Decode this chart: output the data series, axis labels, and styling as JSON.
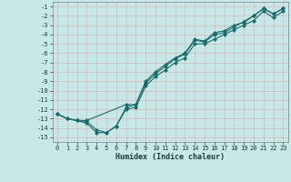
{
  "bg_color": "#c8e8e8",
  "grid_color": "#b8d8d8",
  "line_color": "#1a6b6b",
  "xlabel": "Humidex (Indice chaleur)",
  "xlim": [
    -0.5,
    23.5
  ],
  "ylim": [
    -15.5,
    -0.5
  ],
  "xticks": [
    0,
    1,
    2,
    3,
    4,
    5,
    6,
    7,
    8,
    9,
    10,
    11,
    12,
    13,
    14,
    15,
    16,
    17,
    18,
    19,
    20,
    21,
    22,
    23
  ],
  "yticks": [
    -1,
    -2,
    -3,
    -4,
    -5,
    -6,
    -7,
    -8,
    -9,
    -10,
    -11,
    -12,
    -13,
    -14,
    -15
  ],
  "series1_x": [
    0,
    1,
    2,
    3,
    4,
    5,
    6,
    7,
    8,
    9,
    10,
    11,
    12,
    13,
    14,
    15,
    16,
    17,
    18,
    19,
    20,
    21,
    22,
    23
  ],
  "series1_y": [
    -12.5,
    -13.0,
    -13.2,
    -13.5,
    -14.5,
    -14.5,
    -13.8,
    -12.0,
    -11.8,
    -9.5,
    -8.5,
    -7.8,
    -7.0,
    -6.5,
    -5.0,
    -5.0,
    -4.5,
    -4.0,
    -3.5,
    -3.0,
    -2.5,
    -1.5,
    -2.2,
    -1.5
  ],
  "series2_x": [
    0,
    1,
    2,
    3,
    4,
    5,
    6,
    7,
    8,
    9,
    10,
    11,
    12,
    13,
    14,
    15,
    16,
    17,
    18,
    19,
    20,
    21,
    22,
    23
  ],
  "series2_y": [
    -12.5,
    -13.0,
    -13.2,
    -13.3,
    -14.2,
    -14.5,
    -13.8,
    -11.8,
    -11.5,
    -9.2,
    -8.2,
    -7.4,
    -6.6,
    -6.1,
    -4.6,
    -4.8,
    -4.0,
    -3.8,
    -3.2,
    -2.6,
    -2.0,
    -1.2,
    -1.8,
    -1.2
  ],
  "series3_x": [
    0,
    1,
    2,
    3,
    7,
    8,
    9,
    10,
    11,
    12,
    13,
    14,
    15,
    16,
    17,
    18,
    19,
    20,
    21,
    22,
    23
  ],
  "series3_y": [
    -12.5,
    -13.0,
    -13.2,
    -13.2,
    -11.5,
    -11.5,
    -9.0,
    -8.0,
    -7.2,
    -6.5,
    -6.0,
    -4.5,
    -4.7,
    -3.8,
    -3.6,
    -3.0,
    -2.7,
    -2.0,
    -1.2,
    -1.8,
    -1.2
  ],
  "marker_size": 2.5,
  "line_width": 0.8,
  "tick_fontsize": 5,
  "xlabel_fontsize": 6
}
